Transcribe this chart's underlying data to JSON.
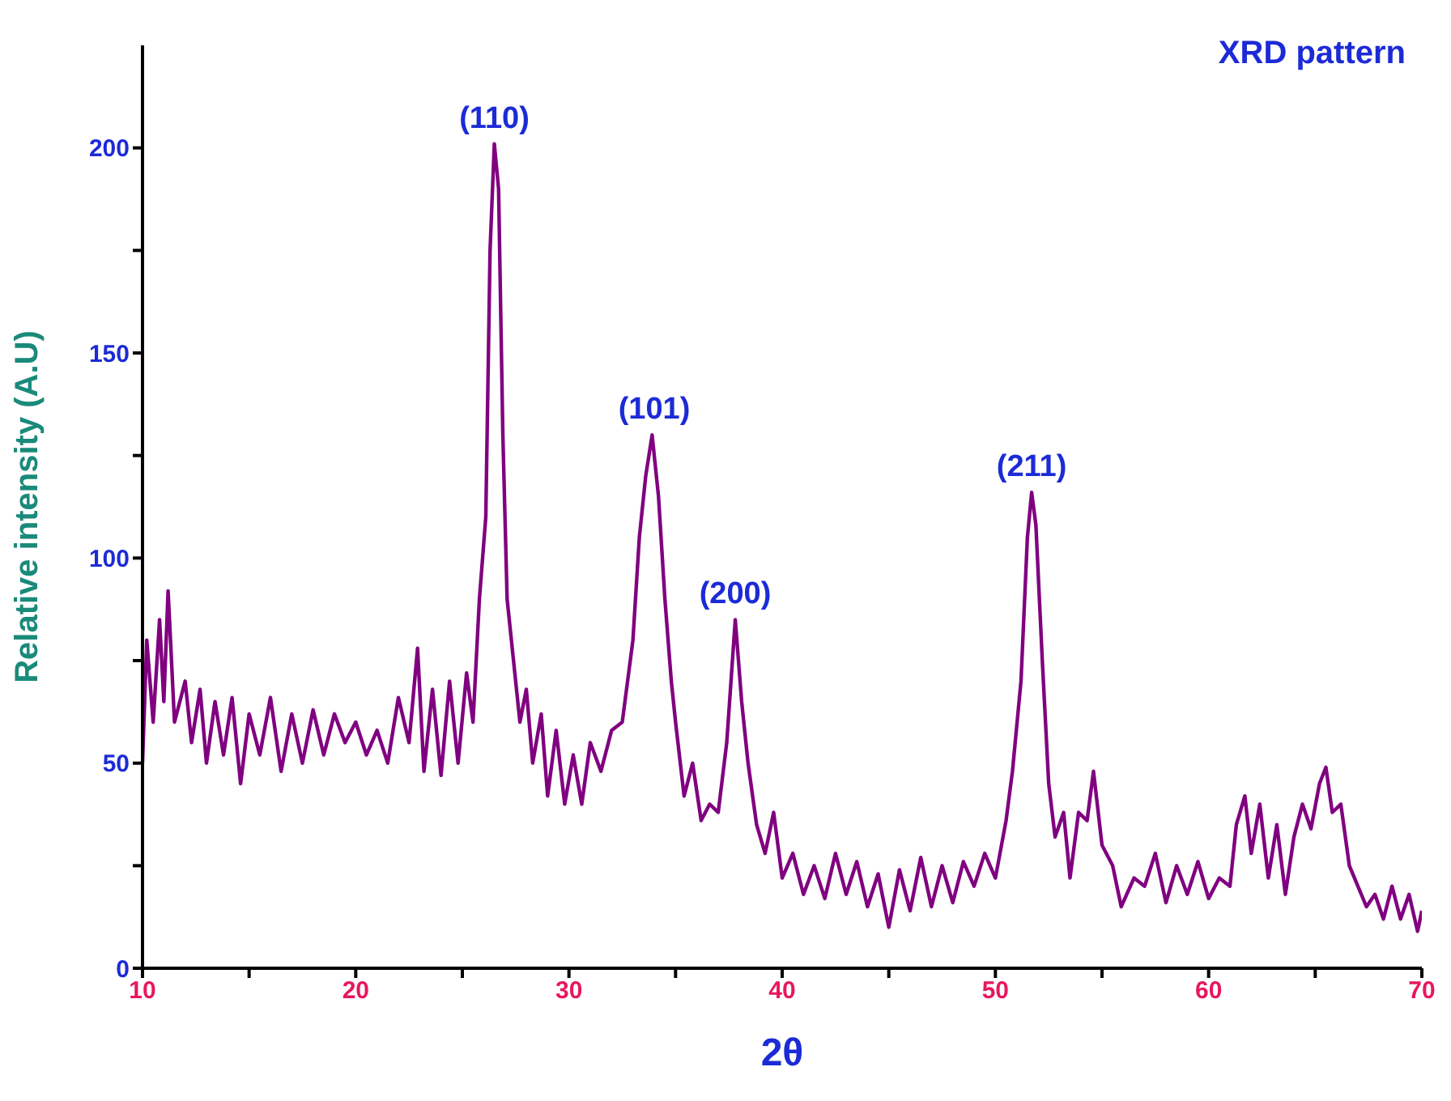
{
  "chart_data": {
    "type": "line",
    "title": "XRD pattern",
    "xlabel": "2θ",
    "ylabel": "Relative intensity (A.U)",
    "xlim": [
      10,
      70
    ],
    "xticks": [
      10,
      {
        "value": 15,
        "label": null
      },
      20,
      {
        "value": 25,
        "label": null
      },
      30,
      {
        "value": 35,
        "label": null
      },
      40,
      {
        "value": 45,
        "label": null
      },
      50,
      {
        "value": 55,
        "label": null
      },
      60,
      {
        "value": 65,
        "label": null
      },
      70
    ],
    "ylim": [
      0,
      225
    ],
    "yticks": [
      0,
      {
        "value": 25,
        "label": null
      },
      50,
      {
        "value": 75,
        "label": null
      },
      100,
      {
        "value": 125,
        "label": null
      },
      150,
      {
        "value": 175,
        "label": null
      },
      200
    ],
    "series": [
      {
        "color": "#800080",
        "x": [
          10,
          10.2,
          10.5,
          10.8,
          11,
          11.2,
          11.5,
          12,
          12.3,
          12.7,
          13,
          13.4,
          13.8,
          14.2,
          14.6,
          15,
          15.5,
          16,
          16.5,
          17,
          17.5,
          18,
          18.5,
          19,
          19.5,
          20,
          20.5,
          21,
          21.5,
          22,
          22.5,
          22.9,
          23.2,
          23.6,
          24,
          24.4,
          24.8,
          25.2,
          25.5,
          25.8,
          26.1,
          26.3,
          26.5,
          26.7,
          26.9,
          27.1,
          27.4,
          27.7,
          28,
          28.3,
          28.7,
          29,
          29.4,
          29.8,
          30.2,
          30.6,
          31,
          31.5,
          32,
          32.5,
          33,
          33.3,
          33.6,
          33.9,
          34.2,
          34.5,
          34.8,
          35,
          35.4,
          35.8,
          36.2,
          36.6,
          37,
          37.4,
          37.8,
          38.1,
          38.4,
          38.8,
          39.2,
          39.6,
          40,
          40.5,
          41,
          41.5,
          42,
          42.5,
          43,
          43.5,
          44,
          44.5,
          45,
          45.5,
          46,
          46.5,
          47,
          47.5,
          48,
          48.5,
          49,
          49.5,
          50,
          50.5,
          50.8,
          51.2,
          51.5,
          51.7,
          51.9,
          52.2,
          52.5,
          52.8,
          53.2,
          53.5,
          53.9,
          54.3,
          54.6,
          55,
          55.5,
          55.9,
          56.5,
          57,
          57.5,
          58,
          58.5,
          59,
          59.5,
          60,
          60.5,
          61,
          61.3,
          61.7,
          62,
          62.4,
          62.8,
          63.2,
          63.6,
          64,
          64.4,
          64.8,
          65.2,
          65.5,
          65.8,
          66.2,
          66.6,
          67,
          67.4,
          67.8,
          68.2,
          68.6,
          69,
          69.4,
          69.8,
          70
        ],
        "values": [
          50,
          80,
          60,
          85,
          65,
          92,
          60,
          70,
          55,
          68,
          50,
          65,
          52,
          66,
          45,
          62,
          52,
          66,
          48,
          62,
          50,
          63,
          52,
          62,
          55,
          60,
          52,
          58,
          50,
          66,
          55,
          78,
          48,
          68,
          47,
          70,
          50,
          72,
          60,
          90,
          110,
          175,
          201,
          190,
          130,
          90,
          75,
          60,
          68,
          50,
          62,
          42,
          58,
          40,
          52,
          40,
          55,
          48,
          58,
          60,
          80,
          105,
          120,
          130,
          115,
          90,
          70,
          60,
          42,
          50,
          36,
          40,
          38,
          55,
          85,
          65,
          50,
          35,
          28,
          38,
          22,
          28,
          18,
          25,
          17,
          28,
          18,
          26,
          15,
          23,
          10,
          24,
          14,
          27,
          15,
          25,
          16,
          26,
          20,
          28,
          22,
          36,
          48,
          70,
          105,
          116,
          108,
          75,
          45,
          32,
          38,
          22,
          38,
          36,
          48,
          30,
          25,
          15,
          22,
          20,
          28,
          16,
          25,
          18,
          26,
          17,
          22,
          20,
          35,
          42,
          28,
          40,
          22,
          35,
          18,
          32,
          40,
          34,
          45,
          49,
          38,
          40,
          25,
          20,
          15,
          18,
          12,
          20,
          12,
          18,
          9,
          14
        ]
      }
    ],
    "annotations": [
      {
        "text": "(110)",
        "x": 26.5,
        "y": 201
      },
      {
        "text": "(101)",
        "x": 34,
        "y": 130
      },
      {
        "text": "(200)",
        "x": 37.8,
        "y": 85
      },
      {
        "text": "(211)",
        "x": 51.7,
        "y": 116
      }
    ]
  }
}
